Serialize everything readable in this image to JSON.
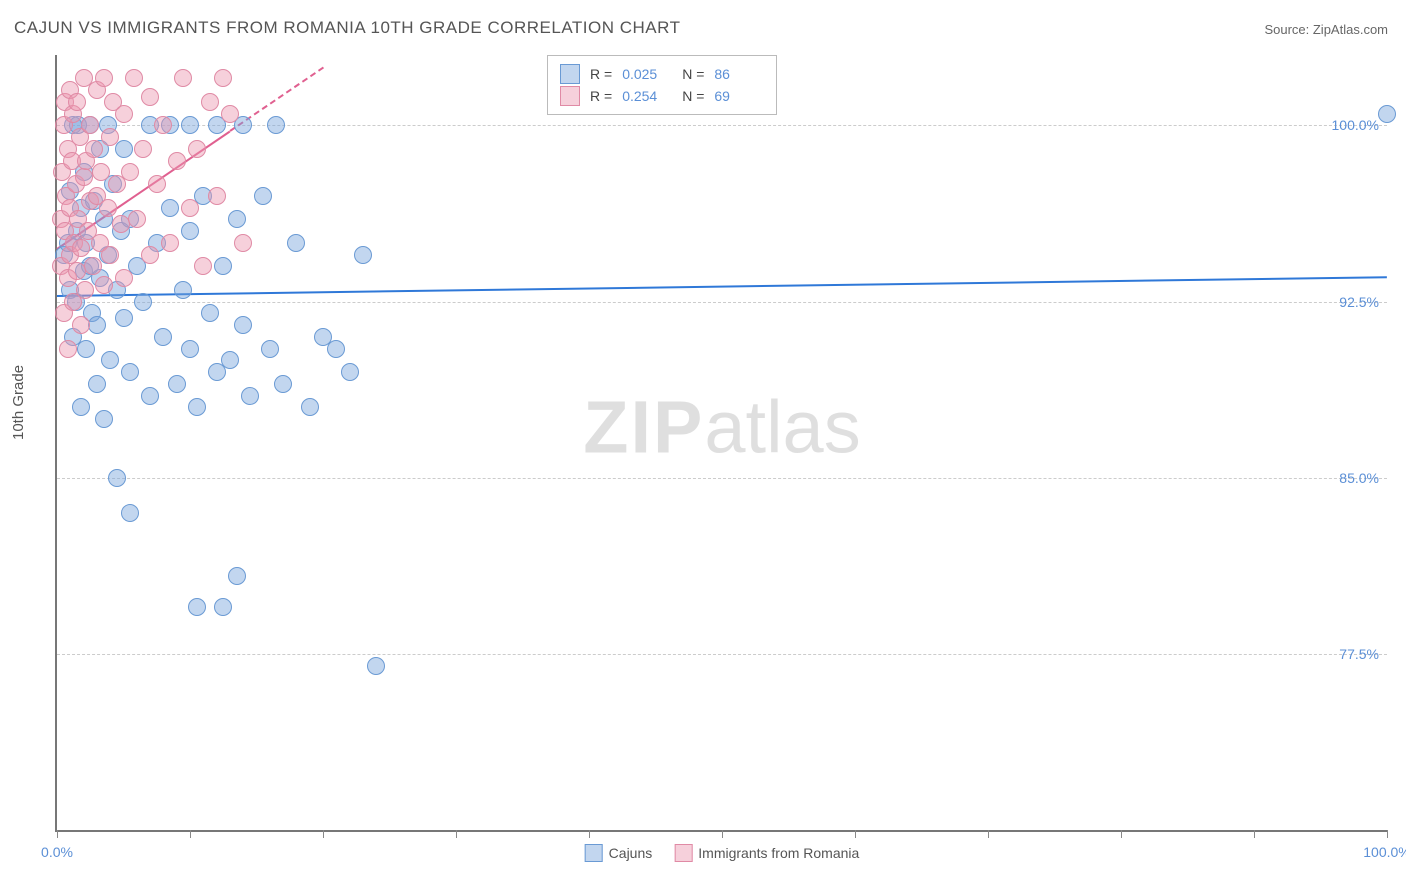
{
  "title": "CAJUN VS IMMIGRANTS FROM ROMANIA 10TH GRADE CORRELATION CHART",
  "source": "Source: ZipAtlas.com",
  "watermark_a": "ZIP",
  "watermark_b": "atlas",
  "ylabel": "10th Grade",
  "chart": {
    "type": "scatter",
    "xlim": [
      0,
      100
    ],
    "ylim": [
      70,
      103
    ],
    "y_gridlines": [
      77.5,
      85.0,
      92.5,
      100.0
    ],
    "y_tick_labels": [
      "77.5%",
      "85.0%",
      "92.5%",
      "100.0%"
    ],
    "x_ticks": [
      0,
      10,
      20,
      30,
      40,
      50,
      60,
      70,
      80,
      90,
      100
    ],
    "x_tick_labels": {
      "0": "0.0%",
      "100": "100.0%"
    },
    "grid_color": "#cccccc",
    "axis_color": "#777777",
    "background": "#ffffff",
    "point_radius": 8,
    "series": [
      {
        "name": "Cajuns",
        "fill": "rgba(120,165,220,0.45)",
        "stroke": "#6a9ad4",
        "R": "0.025",
        "N": "86",
        "trend": {
          "x1": 0,
          "y1": 92.8,
          "x2": 100,
          "y2": 93.6,
          "color": "#2f78d8",
          "solid_to_x": 100
        },
        "points": [
          [
            0.5,
            94.5
          ],
          [
            0.8,
            95.0
          ],
          [
            1.0,
            93.0
          ],
          [
            1.0,
            97.2
          ],
          [
            1.2,
            100.0
          ],
          [
            1.2,
            91.0
          ],
          [
            1.4,
            92.5
          ],
          [
            1.5,
            95.5
          ],
          [
            1.6,
            100.0
          ],
          [
            1.8,
            96.5
          ],
          [
            1.8,
            88.0
          ],
          [
            2.0,
            93.8
          ],
          [
            2.0,
            98.0
          ],
          [
            2.2,
            90.5
          ],
          [
            2.2,
            95.0
          ],
          [
            2.5,
            94.0
          ],
          [
            2.5,
            100.0
          ],
          [
            2.6,
            92.0
          ],
          [
            2.8,
            96.8
          ],
          [
            3.0,
            91.5
          ],
          [
            3.0,
            89.0
          ],
          [
            3.2,
            93.5
          ],
          [
            3.2,
            99.0
          ],
          [
            3.5,
            96.0
          ],
          [
            3.5,
            87.5
          ],
          [
            3.8,
            94.5
          ],
          [
            3.8,
            100.0
          ],
          [
            4.0,
            90.0
          ],
          [
            4.2,
            97.5
          ],
          [
            4.5,
            93.0
          ],
          [
            4.5,
            85.0
          ],
          [
            4.8,
            95.5
          ],
          [
            5.0,
            91.8
          ],
          [
            5.0,
            99.0
          ],
          [
            5.5,
            89.5
          ],
          [
            5.5,
            96.0
          ],
          [
            5.5,
            83.5
          ],
          [
            6.0,
            94.0
          ],
          [
            6.5,
            92.5
          ],
          [
            7.0,
            100.0
          ],
          [
            7.0,
            88.5
          ],
          [
            7.5,
            95.0
          ],
          [
            8.0,
            91.0
          ],
          [
            8.5,
            96.5
          ],
          [
            8.5,
            100.0
          ],
          [
            9.0,
            89.0
          ],
          [
            9.5,
            93.0
          ],
          [
            10.0,
            95.5
          ],
          [
            10.0,
            90.5
          ],
          [
            10.0,
            100.0
          ],
          [
            10.5,
            88.0
          ],
          [
            10.5,
            79.5
          ],
          [
            11.0,
            97.0
          ],
          [
            11.5,
            92.0
          ],
          [
            12.0,
            89.5
          ],
          [
            12.0,
            100.0
          ],
          [
            12.5,
            94.0
          ],
          [
            12.5,
            79.5
          ],
          [
            13.0,
            90.0
          ],
          [
            13.5,
            96.0
          ],
          [
            13.5,
            80.8
          ],
          [
            14.0,
            91.5
          ],
          [
            14.0,
            100.0
          ],
          [
            14.5,
            88.5
          ],
          [
            15.5,
            97.0
          ],
          [
            16.0,
            90.5
          ],
          [
            16.5,
            100.0
          ],
          [
            17.0,
            89.0
          ],
          [
            18.0,
            95.0
          ],
          [
            19.0,
            88.0
          ],
          [
            20.0,
            91.0
          ],
          [
            21.0,
            90.5
          ],
          [
            22.0,
            89.5
          ],
          [
            23.0,
            94.5
          ],
          [
            24.0,
            77.0
          ],
          [
            100.0,
            100.5
          ]
        ]
      },
      {
        "name": "Immigrants from Romania",
        "fill": "rgba(235,150,175,0.45)",
        "stroke": "#e08aa5",
        "R": "0.254",
        "N": "69",
        "trend": {
          "x1": 0,
          "y1": 94.8,
          "x2": 20,
          "y2": 102.5,
          "color": "#e06090",
          "solid_to_x": 13
        },
        "points": [
          [
            0.3,
            94.0
          ],
          [
            0.3,
            96.0
          ],
          [
            0.4,
            98.0
          ],
          [
            0.5,
            100.0
          ],
          [
            0.5,
            92.0
          ],
          [
            0.6,
            95.5
          ],
          [
            0.6,
            101.0
          ],
          [
            0.7,
            97.0
          ],
          [
            0.8,
            93.5
          ],
          [
            0.8,
            99.0
          ],
          [
            0.8,
            90.5
          ],
          [
            1.0,
            96.5
          ],
          [
            1.0,
            101.5
          ],
          [
            1.0,
            94.5
          ],
          [
            1.1,
            98.5
          ],
          [
            1.2,
            92.5
          ],
          [
            1.2,
            100.5
          ],
          [
            1.3,
            95.0
          ],
          [
            1.4,
            97.5
          ],
          [
            1.5,
            93.8
          ],
          [
            1.5,
            101.0
          ],
          [
            1.6,
            96.0
          ],
          [
            1.7,
            99.5
          ],
          [
            1.8,
            94.8
          ],
          [
            1.8,
            91.5
          ],
          [
            2.0,
            97.8
          ],
          [
            2.0,
            102.0
          ],
          [
            2.1,
            93.0
          ],
          [
            2.2,
            98.5
          ],
          [
            2.3,
            95.5
          ],
          [
            2.5,
            100.0
          ],
          [
            2.5,
            96.8
          ],
          [
            2.7,
            94.0
          ],
          [
            2.8,
            99.0
          ],
          [
            3.0,
            97.0
          ],
          [
            3.0,
            101.5
          ],
          [
            3.2,
            95.0
          ],
          [
            3.3,
            98.0
          ],
          [
            3.5,
            102.0
          ],
          [
            3.5,
            93.2
          ],
          [
            3.8,
            96.5
          ],
          [
            4.0,
            99.5
          ],
          [
            4.0,
            94.5
          ],
          [
            4.2,
            101.0
          ],
          [
            4.5,
            97.5
          ],
          [
            4.8,
            95.8
          ],
          [
            5.0,
            100.5
          ],
          [
            5.0,
            93.5
          ],
          [
            5.5,
            98.0
          ],
          [
            5.8,
            102.0
          ],
          [
            6.0,
            96.0
          ],
          [
            6.5,
            99.0
          ],
          [
            7.0,
            94.5
          ],
          [
            7.0,
            101.2
          ],
          [
            7.5,
            97.5
          ],
          [
            8.0,
            100.0
          ],
          [
            8.5,
            95.0
          ],
          [
            9.0,
            98.5
          ],
          [
            9.5,
            102.0
          ],
          [
            10.0,
            96.5
          ],
          [
            10.5,
            99.0
          ],
          [
            11.0,
            94.0
          ],
          [
            11.5,
            101.0
          ],
          [
            12.0,
            97.0
          ],
          [
            13.0,
            100.5
          ],
          [
            14.0,
            95.0
          ],
          [
            12.5,
            102.0
          ]
        ]
      }
    ]
  },
  "legend_top": {
    "r_label": "R =",
    "n_label": "N ="
  },
  "legend_bottom": [
    {
      "label": "Cajuns",
      "fill": "rgba(120,165,220,0.45)",
      "stroke": "#6a9ad4"
    },
    {
      "label": "Immigrants from Romania",
      "fill": "rgba(235,150,175,0.45)",
      "stroke": "#e08aa5"
    }
  ]
}
